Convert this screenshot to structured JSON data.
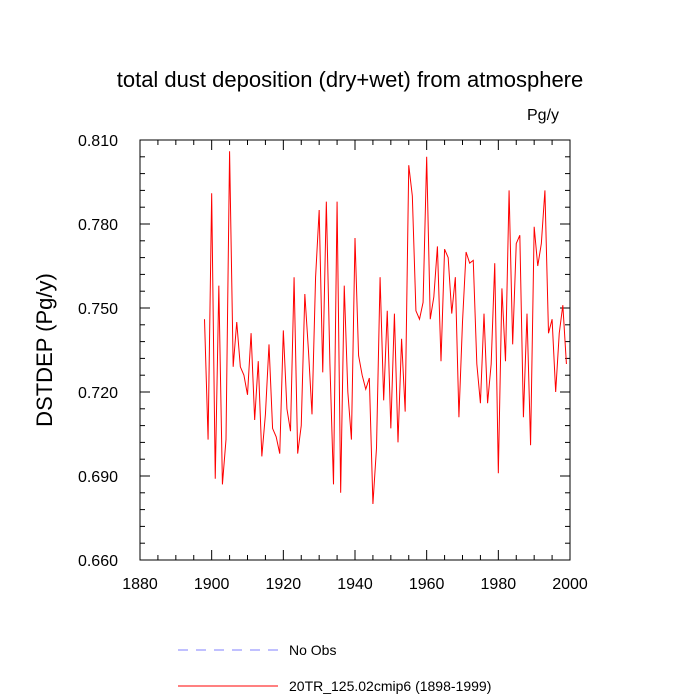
{
  "chart_data": {
    "type": "line",
    "title": "total dust deposition (dry+wet) from atmosphere",
    "units_label": "Pg/y",
    "ylabel": "DSTDEP  (Pg/y)",
    "xlabel": "",
    "xlim": [
      1880,
      2000
    ],
    "ylim": [
      0.66,
      0.81
    ],
    "x_ticks": [
      1880,
      1900,
      1920,
      1940,
      1960,
      1980,
      2000
    ],
    "x_tick_labels": [
      "1880",
      "1900",
      "1920",
      "1940",
      "1960",
      "1980",
      "2000"
    ],
    "y_ticks": [
      0.66,
      0.69,
      0.72,
      0.75,
      0.78,
      0.81
    ],
    "y_tick_labels": [
      "0.660",
      "0.690",
      "0.720",
      "0.750",
      "0.780",
      "0.810"
    ],
    "grid": false,
    "legend_position": "bottom",
    "series": [
      {
        "name": "No Obs",
        "color": "#8080ff",
        "style": "dashed",
        "x": [],
        "values": []
      },
      {
        "name": "20TR_125.02cmip6 (1898-1999)",
        "color": "#ff0000",
        "style": "solid",
        "x": [
          1898,
          1899,
          1900,
          1901,
          1902,
          1903,
          1904,
          1905,
          1906,
          1907,
          1908,
          1909,
          1910,
          1911,
          1912,
          1913,
          1914,
          1915,
          1916,
          1917,
          1918,
          1919,
          1920,
          1921,
          1922,
          1923,
          1924,
          1925,
          1926,
          1927,
          1928,
          1929,
          1930,
          1931,
          1932,
          1933,
          1934,
          1935,
          1936,
          1937,
          1938,
          1939,
          1940,
          1941,
          1942,
          1943,
          1944,
          1945,
          1946,
          1947,
          1948,
          1949,
          1950,
          1951,
          1952,
          1953,
          1954,
          1955,
          1956,
          1957,
          1958,
          1959,
          1960,
          1961,
          1962,
          1963,
          1964,
          1965,
          1966,
          1967,
          1968,
          1969,
          1970,
          1971,
          1972,
          1973,
          1974,
          1975,
          1976,
          1977,
          1978,
          1979,
          1980,
          1981,
          1982,
          1983,
          1984,
          1985,
          1986,
          1987,
          1988,
          1989,
          1990,
          1991,
          1992,
          1993,
          1994,
          1995,
          1996,
          1997,
          1998,
          1999
        ],
        "values": [
          0.746,
          0.703,
          0.791,
          0.689,
          0.758,
          0.687,
          0.703,
          0.806,
          0.729,
          0.745,
          0.729,
          0.726,
          0.719,
          0.741,
          0.71,
          0.731,
          0.697,
          0.712,
          0.737,
          0.707,
          0.704,
          0.698,
          0.742,
          0.714,
          0.706,
          0.761,
          0.698,
          0.708,
          0.755,
          0.735,
          0.712,
          0.761,
          0.785,
          0.727,
          0.788,
          0.73,
          0.687,
          0.788,
          0.684,
          0.758,
          0.72,
          0.703,
          0.775,
          0.733,
          0.726,
          0.721,
          0.725,
          0.68,
          0.7,
          0.761,
          0.717,
          0.749,
          0.707,
          0.748,
          0.702,
          0.739,
          0.713,
          0.801,
          0.79,
          0.749,
          0.746,
          0.752,
          0.804,
          0.746,
          0.754,
          0.772,
          0.731,
          0.771,
          0.768,
          0.748,
          0.761,
          0.711,
          0.745,
          0.77,
          0.766,
          0.767,
          0.73,
          0.716,
          0.748,
          0.716,
          0.73,
          0.766,
          0.691,
          0.757,
          0.731,
          0.792,
          0.737,
          0.773,
          0.776,
          0.711,
          0.748,
          0.701,
          0.779,
          0.765,
          0.773,
          0.792,
          0.741,
          0.746,
          0.72,
          0.741,
          0.751,
          0.73
        ]
      }
    ]
  }
}
